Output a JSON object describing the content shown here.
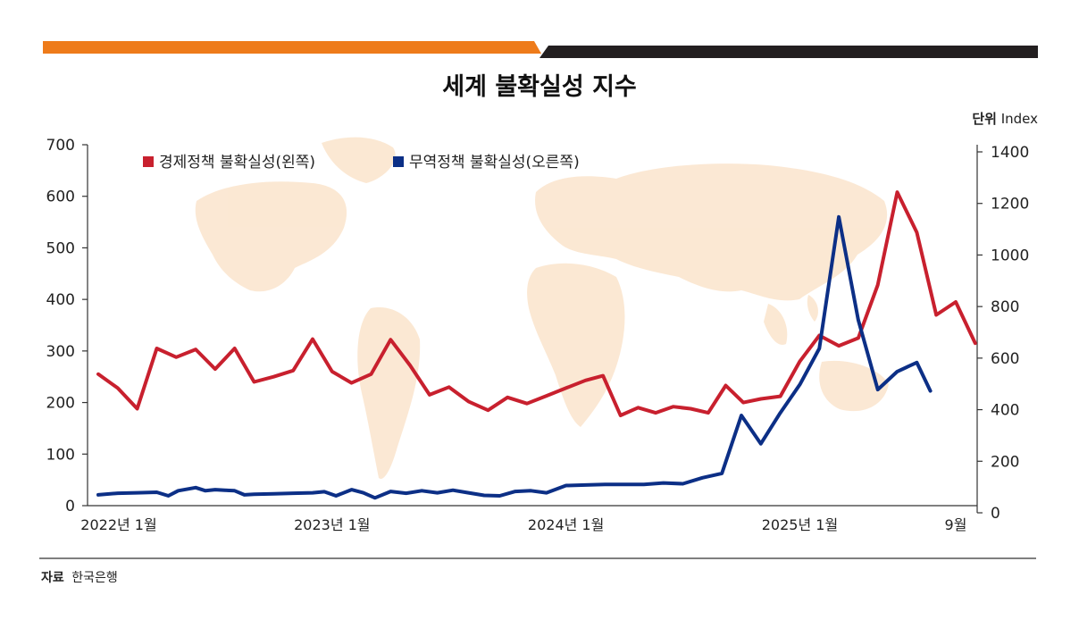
{
  "chart_data": {
    "type": "line",
    "title": "세계 불확실성 지수",
    "unit_label": "단위",
    "unit": "Index",
    "source_label": "자료",
    "source": "한국은행",
    "y_left": {
      "min": 0,
      "max": 700,
      "ticks": [
        "0",
        "100",
        "200",
        "300",
        "400",
        "500",
        "600",
        "700"
      ]
    },
    "y_right": {
      "min": 0,
      "max": 1400,
      "ticks": [
        "0",
        "200",
        "400",
        "600",
        "800",
        "1000",
        "1200",
        "1400"
      ]
    },
    "x_range": [
      0,
      44
    ],
    "x_ticks": [
      {
        "x": 0,
        "label": "2022년 1월"
      },
      {
        "x": 12,
        "label": "2023년 1월"
      },
      {
        "x": 24,
        "label": "2024년 1월"
      },
      {
        "x": 36,
        "label": "2025년 1월"
      },
      {
        "x": 44,
        "label": "9월"
      }
    ],
    "series": [
      {
        "name": "경제정책 불확실성(왼쪽)",
        "axis": "left",
        "color": "#c8202e",
        "points": [
          [
            0,
            255
          ],
          [
            1,
            228
          ],
          [
            2,
            188
          ],
          [
            3,
            305
          ],
          [
            4,
            288
          ],
          [
            5,
            303
          ],
          [
            6,
            265
          ],
          [
            7,
            305
          ],
          [
            8,
            240
          ],
          [
            9,
            250
          ],
          [
            10,
            262
          ],
          [
            11,
            323
          ],
          [
            12,
            260
          ],
          [
            13,
            238
          ],
          [
            14,
            255
          ],
          [
            15,
            322
          ],
          [
            16,
            272
          ],
          [
            17,
            215
          ],
          [
            18,
            230
          ],
          [
            19,
            202
          ],
          [
            20,
            185
          ],
          [
            21,
            210
          ],
          [
            22,
            198
          ],
          [
            23,
            213
          ],
          [
            24,
            228
          ],
          [
            25,
            243
          ],
          [
            25.9,
            252
          ],
          [
            26.8,
            175
          ],
          [
            27.7,
            190
          ],
          [
            28.6,
            180
          ],
          [
            29.5,
            192
          ],
          [
            30.4,
            188
          ],
          [
            31.3,
            180
          ],
          [
            32.2,
            233
          ],
          [
            33.1,
            200
          ],
          [
            34,
            207
          ],
          [
            35,
            212
          ],
          [
            36,
            280
          ],
          [
            37,
            330
          ],
          [
            38,
            310
          ],
          [
            39,
            325
          ],
          [
            40,
            428
          ],
          [
            41,
            608
          ],
          [
            42,
            530
          ],
          [
            43,
            370
          ],
          [
            44,
            395
          ],
          [
            45,
            315
          ]
        ]
      },
      {
        "name": "무역정책 불확실성(오른쪽)",
        "axis": "right",
        "color": "#0c2f86",
        "points": [
          [
            0,
            42
          ],
          [
            1,
            48
          ],
          [
            2,
            50
          ],
          [
            3,
            52
          ],
          [
            3.6,
            38
          ],
          [
            4.1,
            58
          ],
          [
            5,
            70
          ],
          [
            5.5,
            58
          ],
          [
            6,
            62
          ],
          [
            6.5,
            60
          ],
          [
            7,
            58
          ],
          [
            7.5,
            42
          ],
          [
            8,
            44
          ],
          [
            9,
            46
          ],
          [
            10,
            48
          ],
          [
            11,
            50
          ],
          [
            11.6,
            54
          ],
          [
            12.2,
            38
          ],
          [
            13,
            62
          ],
          [
            13.6,
            50
          ],
          [
            14.2,
            30
          ],
          [
            15,
            55
          ],
          [
            15.8,
            48
          ],
          [
            16.6,
            58
          ],
          [
            17.4,
            50
          ],
          [
            18.2,
            60
          ],
          [
            19,
            50
          ],
          [
            19.8,
            40
          ],
          [
            20.6,
            38
          ],
          [
            21.4,
            55
          ],
          [
            22.2,
            58
          ],
          [
            23,
            50
          ],
          [
            24,
            78
          ],
          [
            25,
            80
          ],
          [
            26,
            82
          ],
          [
            27,
            82
          ],
          [
            28,
            82
          ],
          [
            29,
            88
          ],
          [
            30,
            85
          ],
          [
            31,
            108
          ],
          [
            32,
            125
          ],
          [
            33,
            350
          ],
          [
            34,
            240
          ],
          [
            35,
            360
          ],
          [
            36,
            470
          ],
          [
            37,
            610
          ],
          [
            38,
            1120
          ],
          [
            39,
            720
          ],
          [
            40,
            450
          ],
          [
            41,
            520
          ],
          [
            42,
            555
          ],
          [
            42.7,
            445
          ]
        ]
      }
    ]
  }
}
